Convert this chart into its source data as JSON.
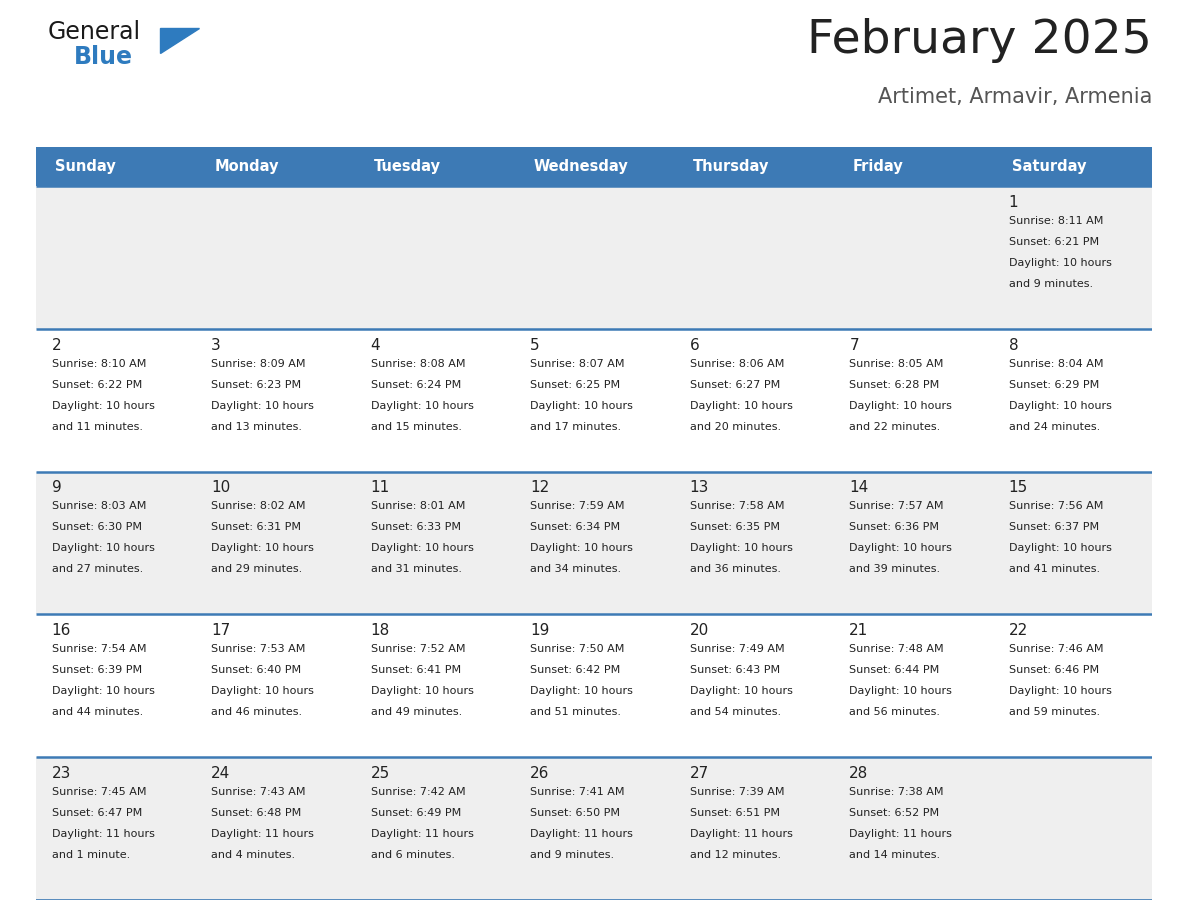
{
  "title": "February 2025",
  "subtitle": "Artimet, Armavir, Armenia",
  "days_of_week": [
    "Sunday",
    "Monday",
    "Tuesday",
    "Wednesday",
    "Thursday",
    "Friday",
    "Saturday"
  ],
  "header_bg": "#3d7ab5",
  "header_text": "#ffffff",
  "row_bg_odd": "#efefef",
  "row_bg_even": "#ffffff",
  "cell_text_color": "#222222",
  "divider_color": "#3d7ab5",
  "title_color": "#222222",
  "subtitle_color": "#555555",
  "logo_general_color": "#1a1a1a",
  "logo_blue_color": "#2e7bbf",
  "calendar_data": [
    [
      null,
      null,
      null,
      null,
      null,
      null,
      {
        "day": 1,
        "sunrise": "8:11 AM",
        "sunset": "6:21 PM",
        "daylight": "10 hours and 9 minutes"
      }
    ],
    [
      {
        "day": 2,
        "sunrise": "8:10 AM",
        "sunset": "6:22 PM",
        "daylight": "10 hours and 11 minutes"
      },
      {
        "day": 3,
        "sunrise": "8:09 AM",
        "sunset": "6:23 PM",
        "daylight": "10 hours and 13 minutes"
      },
      {
        "day": 4,
        "sunrise": "8:08 AM",
        "sunset": "6:24 PM",
        "daylight": "10 hours and 15 minutes"
      },
      {
        "day": 5,
        "sunrise": "8:07 AM",
        "sunset": "6:25 PM",
        "daylight": "10 hours and 17 minutes"
      },
      {
        "day": 6,
        "sunrise": "8:06 AM",
        "sunset": "6:27 PM",
        "daylight": "10 hours and 20 minutes"
      },
      {
        "day": 7,
        "sunrise": "8:05 AM",
        "sunset": "6:28 PM",
        "daylight": "10 hours and 22 minutes"
      },
      {
        "day": 8,
        "sunrise": "8:04 AM",
        "sunset": "6:29 PM",
        "daylight": "10 hours and 24 minutes"
      }
    ],
    [
      {
        "day": 9,
        "sunrise": "8:03 AM",
        "sunset": "6:30 PM",
        "daylight": "10 hours and 27 minutes"
      },
      {
        "day": 10,
        "sunrise": "8:02 AM",
        "sunset": "6:31 PM",
        "daylight": "10 hours and 29 minutes"
      },
      {
        "day": 11,
        "sunrise": "8:01 AM",
        "sunset": "6:33 PM",
        "daylight": "10 hours and 31 minutes"
      },
      {
        "day": 12,
        "sunrise": "7:59 AM",
        "sunset": "6:34 PM",
        "daylight": "10 hours and 34 minutes"
      },
      {
        "day": 13,
        "sunrise": "7:58 AM",
        "sunset": "6:35 PM",
        "daylight": "10 hours and 36 minutes"
      },
      {
        "day": 14,
        "sunrise": "7:57 AM",
        "sunset": "6:36 PM",
        "daylight": "10 hours and 39 minutes"
      },
      {
        "day": 15,
        "sunrise": "7:56 AM",
        "sunset": "6:37 PM",
        "daylight": "10 hours and 41 minutes"
      }
    ],
    [
      {
        "day": 16,
        "sunrise": "7:54 AM",
        "sunset": "6:39 PM",
        "daylight": "10 hours and 44 minutes"
      },
      {
        "day": 17,
        "sunrise": "7:53 AM",
        "sunset": "6:40 PM",
        "daylight": "10 hours and 46 minutes"
      },
      {
        "day": 18,
        "sunrise": "7:52 AM",
        "sunset": "6:41 PM",
        "daylight": "10 hours and 49 minutes"
      },
      {
        "day": 19,
        "sunrise": "7:50 AM",
        "sunset": "6:42 PM",
        "daylight": "10 hours and 51 minutes"
      },
      {
        "day": 20,
        "sunrise": "7:49 AM",
        "sunset": "6:43 PM",
        "daylight": "10 hours and 54 minutes"
      },
      {
        "day": 21,
        "sunrise": "7:48 AM",
        "sunset": "6:44 PM",
        "daylight": "10 hours and 56 minutes"
      },
      {
        "day": 22,
        "sunrise": "7:46 AM",
        "sunset": "6:46 PM",
        "daylight": "10 hours and 59 minutes"
      }
    ],
    [
      {
        "day": 23,
        "sunrise": "7:45 AM",
        "sunset": "6:47 PM",
        "daylight": "11 hours and 1 minute"
      },
      {
        "day": 24,
        "sunrise": "7:43 AM",
        "sunset": "6:48 PM",
        "daylight": "11 hours and 4 minutes"
      },
      {
        "day": 25,
        "sunrise": "7:42 AM",
        "sunset": "6:49 PM",
        "daylight": "11 hours and 6 minutes"
      },
      {
        "day": 26,
        "sunrise": "7:41 AM",
        "sunset": "6:50 PM",
        "daylight": "11 hours and 9 minutes"
      },
      {
        "day": 27,
        "sunrise": "7:39 AM",
        "sunset": "6:51 PM",
        "daylight": "11 hours and 12 minutes"
      },
      {
        "day": 28,
        "sunrise": "7:38 AM",
        "sunset": "6:52 PM",
        "daylight": "11 hours and 14 minutes"
      },
      null
    ]
  ]
}
